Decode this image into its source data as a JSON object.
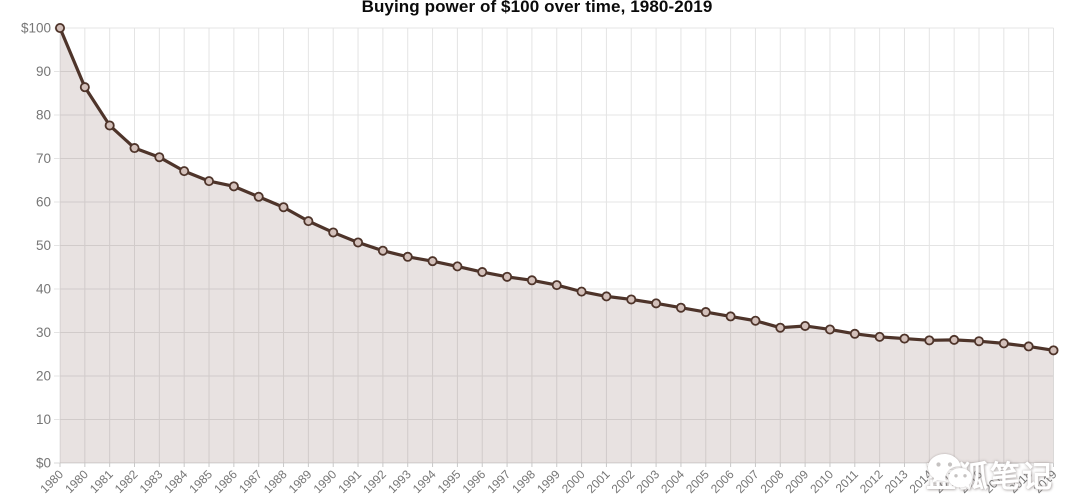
{
  "title": "Buying power of $100 over time, 1980-2019",
  "watermark": {
    "text": "蓝狐笔记",
    "icon": "wechat-icon"
  },
  "colors": {
    "line": "#4e342a",
    "marker_fill": "#d3c0ba",
    "area_fill": "rgba(99,63,53,0.15)",
    "grid": "#e4e4e4",
    "axis_line": "#d8d8d8",
    "tick": "#c9c9c9",
    "axis_text": "#767676",
    "title_text": "#0b0b0b",
    "watermark_text": "#ffffff"
  },
  "chart_data": {
    "type": "area",
    "title": "Buying power of $100 over time, 1980-2019",
    "x": [
      "1980",
      "1980",
      "1981",
      "1982",
      "1983",
      "1984",
      "1985",
      "1986",
      "1987",
      "1988",
      "1989",
      "1990",
      "1991",
      "1992",
      "1993",
      "1994",
      "1995",
      "1996",
      "1997",
      "1998",
      "1999",
      "2000",
      "2001",
      "2002",
      "2003",
      "2004",
      "2005",
      "2006",
      "2007",
      "2008",
      "2009",
      "2010",
      "2011",
      "2012",
      "2013",
      "2014",
      "2015",
      "2016",
      "2017",
      "2018",
      "2019"
    ],
    "series": [
      {
        "name": "Buying power of $100",
        "values": [
          100,
          86.4,
          77.6,
          72.4,
          70.3,
          67.1,
          64.8,
          63.6,
          61.2,
          58.8,
          55.6,
          53.0,
          50.7,
          48.8,
          47.4,
          46.4,
          45.2,
          43.9,
          42.8,
          42.0,
          40.9,
          39.4,
          38.3,
          37.6,
          36.7,
          35.7,
          34.7,
          33.7,
          32.7,
          31.1,
          31.5,
          30.7,
          29.7,
          29.0,
          28.6,
          28.2,
          28.3,
          28.0,
          27.5,
          26.8,
          25.9
        ]
      }
    ],
    "xlabel": "",
    "ylabel": "",
    "ylim": [
      0,
      100
    ],
    "y_ticks": [
      100,
      90,
      80,
      70,
      60,
      50,
      40,
      30,
      20,
      10,
      0
    ],
    "y_tick_labels": [
      "$100",
      "90",
      "80",
      "70",
      "60",
      "50",
      "40",
      "30",
      "20",
      "10",
      "$0"
    ],
    "grid": true,
    "legend_position": "none",
    "marker": "circle",
    "x_label_rotation": -45
  }
}
